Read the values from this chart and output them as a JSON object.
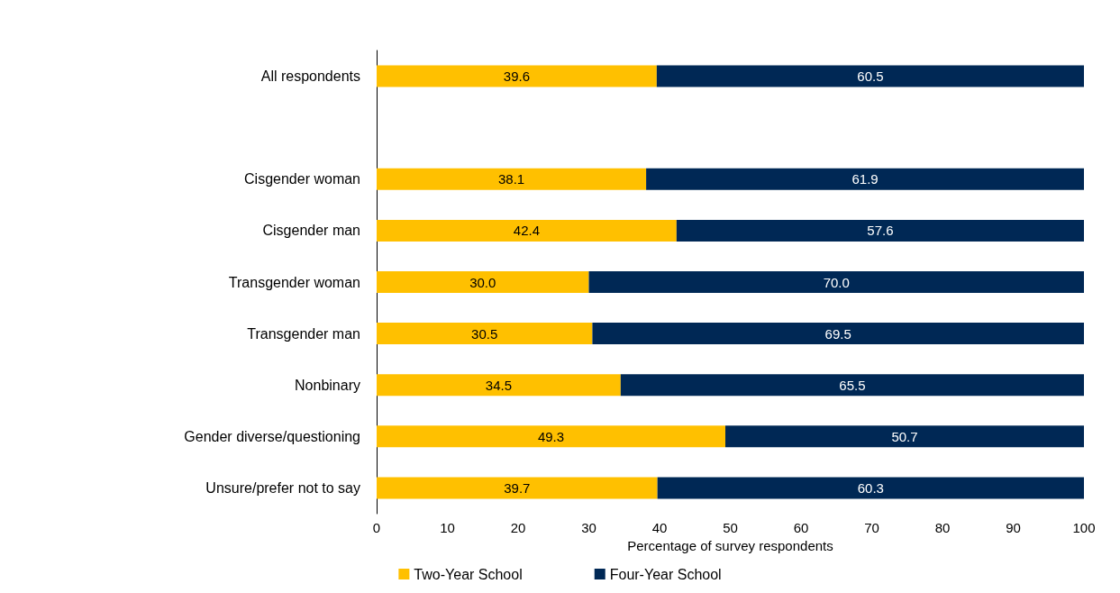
{
  "chart_data": {
    "type": "bar",
    "orientation": "horizontal",
    "stacked": true,
    "xlabel": "Percentage of survey respondents",
    "categories": [
      "All respondents",
      null,
      "Cisgender woman",
      "Cisgender man",
      "Transgender woman",
      "Transgender man",
      "Nonbinary",
      "Gender diverse/questioning",
      "Unsure/prefer not to say"
    ],
    "series": [
      {
        "name": "Two-Year School",
        "color": "#ffc000",
        "values": [
          39.6,
          null,
          38.1,
          42.4,
          30.0,
          30.5,
          34.5,
          49.3,
          39.7
        ],
        "value_labels": [
          "39.6",
          null,
          "38.1",
          "42.4",
          "30.0",
          "30.5",
          "34.5",
          "49.3",
          "39.7"
        ]
      },
      {
        "name": "Four-Year School",
        "color": "#002855",
        "values": [
          60.5,
          null,
          61.9,
          57.6,
          70.0,
          69.5,
          65.5,
          50.7,
          60.3
        ],
        "value_labels": [
          "60.5",
          null,
          "61.9",
          "57.6",
          "70.0",
          "69.5",
          "65.5",
          "50.7",
          "60.3"
        ]
      }
    ],
    "xlim": [
      0,
      100
    ],
    "xticks": [
      0,
      10,
      20,
      30,
      40,
      50,
      60,
      70,
      80,
      90,
      100
    ],
    "grid": false,
    "legend": "bottom"
  }
}
